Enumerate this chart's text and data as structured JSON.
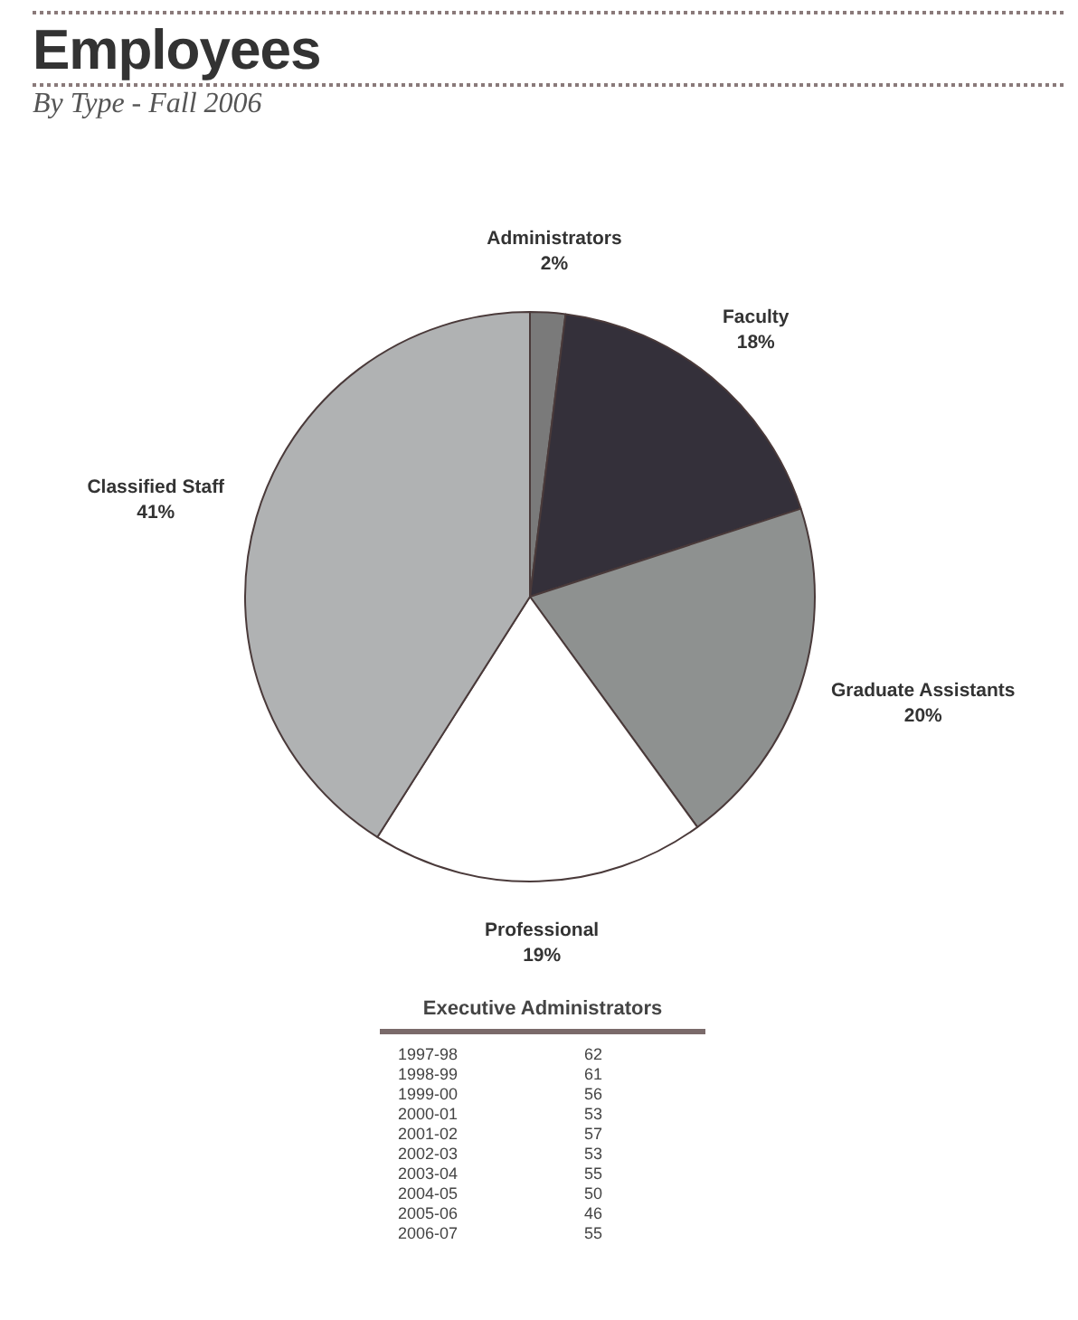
{
  "chart_data": [
    {
      "type": "pie",
      "title": "Employees",
      "subtitle": "By Type - Fall 2006",
      "categories": [
        "Administrators",
        "Faculty",
        "Graduate Assistants",
        "Professional",
        "Classified Staff"
      ],
      "values": [
        2,
        18,
        20,
        19,
        41
      ],
      "value_labels": [
        "2%",
        "18%",
        "20%",
        "19%",
        "41%"
      ],
      "colors": [
        "#7a7a7a",
        "#34303a",
        "#8e9190",
        "#ffffff",
        "#b0b2b3"
      ]
    },
    {
      "type": "other",
      "title": "Executive Administrators",
      "categories": [
        "1997-98",
        "1998-99",
        "1999-00",
        "2000-01",
        "2001-02",
        "2002-03",
        "2003-04",
        "2004-05",
        "2005-06",
        "2006-07"
      ],
      "values": [
        62,
        61,
        56,
        53,
        57,
        53,
        55,
        50,
        46,
        55
      ],
      "data_labels": true
    }
  ]
}
